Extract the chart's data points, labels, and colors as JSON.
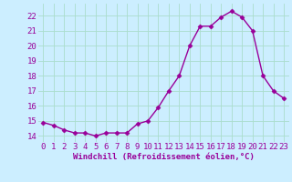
{
  "x": [
    0,
    1,
    2,
    3,
    4,
    5,
    6,
    7,
    8,
    9,
    10,
    11,
    12,
    13,
    14,
    15,
    16,
    17,
    18,
    19,
    20,
    21,
    22,
    23
  ],
  "y": [
    14.9,
    14.7,
    14.4,
    14.2,
    14.2,
    14.0,
    14.2,
    14.2,
    14.2,
    14.8,
    15.0,
    15.9,
    17.0,
    18.0,
    20.0,
    21.3,
    21.3,
    21.9,
    22.3,
    21.9,
    21.0,
    18.0,
    17.0,
    16.5
  ],
  "line_color": "#990099",
  "marker": "D",
  "marker_size": 2.5,
  "bg_color": "#cceeff",
  "grid_color": "#aaddcc",
  "xlabel": "Windchill (Refroidissement éolien,°C)",
  "xlabel_color": "#990099",
  "tick_color": "#990099",
  "ylabel_ticks": [
    14,
    15,
    16,
    17,
    18,
    19,
    20,
    21,
    22
  ],
  "xlim": [
    -0.5,
    23.5
  ],
  "ylim": [
    13.6,
    22.8
  ],
  "line_width": 1.0,
  "xlabel_fontsize": 6.5,
  "tick_fontsize": 6.5
}
